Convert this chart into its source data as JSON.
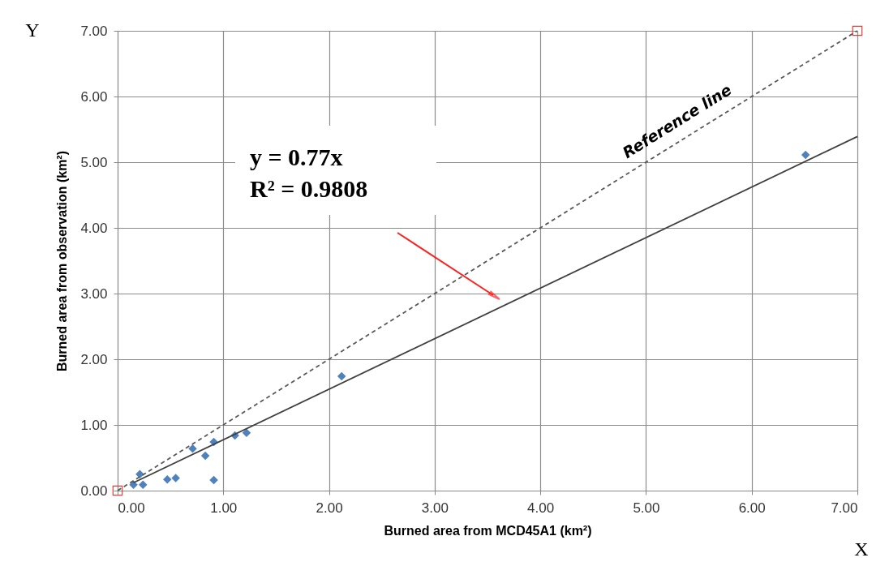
{
  "chart_data": {
    "type": "scatter",
    "xlabel": "Burned area from MCD45A1 (km²)",
    "ylabel": "Burned area from observation (km²)",
    "xlim": [
      0,
      7
    ],
    "ylim": [
      0,
      7
    ],
    "xticks": [
      {
        "value": 0,
        "label": "0.00"
      },
      {
        "value": 1,
        "label": "1.00"
      },
      {
        "value": 2,
        "label": "2.00"
      },
      {
        "value": 3,
        "label": "3.00"
      },
      {
        "value": 4,
        "label": "4.00"
      },
      {
        "value": 5,
        "label": "5.00"
      },
      {
        "value": 6,
        "label": "6.00"
      },
      {
        "value": 7,
        "label": "7.00"
      }
    ],
    "yticks": [
      {
        "value": 0,
        "label": "0.00"
      },
      {
        "value": 1,
        "label": "1.00"
      },
      {
        "value": 2,
        "label": "2.00"
      },
      {
        "value": 3,
        "label": "3.00"
      },
      {
        "value": 4,
        "label": "4.00"
      },
      {
        "value": 5,
        "label": "5.00"
      },
      {
        "value": 6,
        "label": "6.00"
      },
      {
        "value": 7,
        "label": "7.00"
      }
    ],
    "grid": true,
    "series": [
      {
        "marker": "diamond",
        "color": "#4f81bd",
        "x": [
          0.15,
          0.21,
          0.24,
          0.47,
          0.55,
          0.71,
          0.83,
          0.91,
          0.91,
          1.11,
          1.22,
          2.12,
          6.51
        ],
        "values": [
          0.09,
          0.25,
          0.09,
          0.17,
          0.19,
          0.64,
          0.53,
          0.74,
          0.16,
          0.84,
          0.88,
          1.74,
          5.11
        ]
      },
      {
        "type": "line",
        "line_style": "dashed",
        "marker": "none",
        "color": "#595959",
        "x": [
          0,
          7
        ],
        "values": [
          0,
          7
        ]
      },
      {
        "type": "scatter",
        "marker": "square",
        "color": "#e0413d",
        "x": [
          0,
          7
        ],
        "values": [
          0,
          7
        ]
      },
      {
        "type": "line",
        "line_style": "solid",
        "marker": "none",
        "color": "#404040",
        "x": [
          0.15,
          7
        ],
        "values": [
          0.12,
          5.39
        ]
      }
    ],
    "annotations": [
      "y = 0.77x",
      "R² = 0.9808",
      "Reference line",
      "X",
      "Y"
    ]
  }
}
